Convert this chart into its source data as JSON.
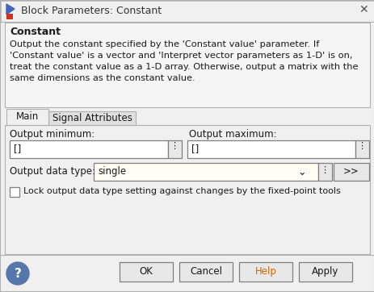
{
  "title": "Block Parameters: Constant",
  "bg_color": "#f0f0f0",
  "white": "#ffffff",
  "border_color": "#b0b0b0",
  "dark_border": "#808080",
  "section_title": "Constant",
  "desc_lines": [
    "Output the constant specified by the 'Constant value' parameter. If",
    "'Constant value' is a vector and 'Interpret vector parameters as 1-D' is on,",
    "treat the constant value as a 1-D array. Otherwise, output a matrix with the",
    "same dimensions as the constant value."
  ],
  "tab1": "Main",
  "tab2": "Signal Attributes",
  "label_min": "Output minimum:",
  "label_max": "Output maximum:",
  "field_min": "[]",
  "field_max": "[]",
  "label_dtype": "Output data type:",
  "field_dtype": "single",
  "btn_arrow": ">>",
  "checkbox_label": "Lock output data type setting against changes by the fixed-point tools",
  "btn_ok": "OK",
  "btn_cancel": "Cancel",
  "btn_help": "Help",
  "btn_apply": "Apply",
  "titlebar_bg": "#f0f0f0",
  "input_bg": "#ffffff",
  "dropdown_bg": "#fefef5",
  "tab_active_bg": "#f0f0f0",
  "tab_inactive_bg": "#e0e0e0",
  "button_bg": "#e8e8e8",
  "text_color": "#1a1a1a",
  "desc_bg": "#f5f5f5",
  "help_color": "#5577aa",
  "help_text": "#ffffff",
  "orange_text": "#cc6600"
}
